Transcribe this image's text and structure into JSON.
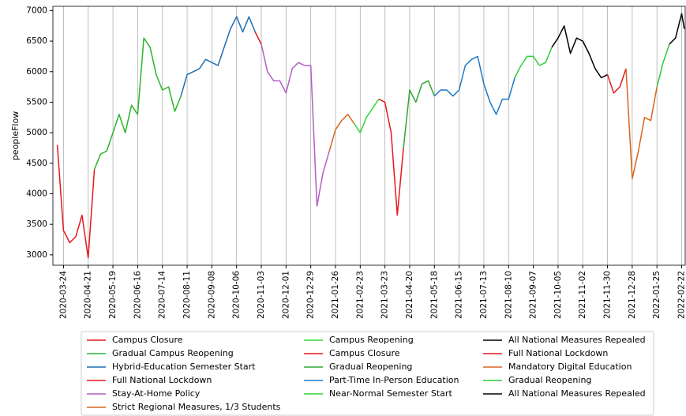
{
  "chart_data": {
    "type": "line",
    "ylabel": "peopleFlow",
    "xlim": [
      "2020-03-12",
      "2022-02-26"
    ],
    "xticks": [
      "2020-03-24",
      "2020-04-21",
      "2020-05-19",
      "2020-06-16",
      "2020-07-14",
      "2020-08-11",
      "2020-09-08",
      "2020-10-06",
      "2020-11-03",
      "2020-12-01",
      "2020-12-29",
      "2021-01-26",
      "2021-02-23",
      "2021-03-23",
      "2021-04-20",
      "2021-05-18",
      "2021-06-15",
      "2021-07-13",
      "2021-08-10",
      "2021-09-07",
      "2021-10-05",
      "2021-11-02",
      "2021-11-30",
      "2021-12-28",
      "2022-01-25",
      "2022-02-22"
    ],
    "ylim": [
      2830,
      7070
    ],
    "yticks": [
      3000,
      3500,
      4000,
      4500,
      5000,
      5500,
      6000,
      6500,
      7000
    ],
    "grid": true,
    "legend": "below",
    "series": [
      {
        "name": "Campus Closure",
        "color": "#e8161b",
        "x": [
          "2020-03-17",
          "2020-03-24",
          "2020-03-31",
          "2020-04-07",
          "2020-04-14",
          "2020-04-21",
          "2020-04-28"
        ],
        "values": [
          4800,
          3400,
          3200,
          3300,
          3650,
          2950,
          4400
        ]
      },
      {
        "name": "Gradual Campus Reopening",
        "color": "#2ab52a",
        "x": [
          "2020-04-28",
          "2020-05-05",
          "2020-05-12",
          "2020-05-19",
          "2020-05-26",
          "2020-06-02",
          "2020-06-09",
          "2020-06-16",
          "2020-06-23",
          "2020-06-30",
          "2020-07-07",
          "2020-07-14",
          "2020-07-21",
          "2020-07-28",
          "2020-08-04"
        ],
        "values": [
          4400,
          4650,
          4700,
          5000,
          5300,
          5000,
          5450,
          5300,
          6550,
          6400,
          5950,
          5700,
          5750,
          5350,
          5600
        ]
      },
      {
        "name": "Hybrid-Education Semester Start",
        "color": "#1f6eb3",
        "x": [
          "2020-08-04",
          "2020-08-11",
          "2020-08-18",
          "2020-08-25",
          "2020-09-01",
          "2020-09-08",
          "2020-09-15",
          "2020-09-22",
          "2020-09-29",
          "2020-10-06",
          "2020-10-13",
          "2020-10-20",
          "2020-10-27"
        ],
        "values": [
          5600,
          5950,
          6000,
          6050,
          6200,
          6150,
          6100,
          6400,
          6700,
          6900,
          6650,
          6900,
          6650
        ]
      },
      {
        "name": "Full National Lockdown",
        "color": "#e8161b",
        "x": [
          "2020-10-27",
          "2020-11-03"
        ],
        "values": [
          6650,
          6450
        ]
      },
      {
        "name": "Stay-At-Home Policy",
        "color": "#b35ec4",
        "x": [
          "2020-11-03",
          "2020-11-10",
          "2020-11-17",
          "2020-11-24",
          "2020-12-01",
          "2020-12-08",
          "2020-12-15",
          "2020-12-22",
          "2020-12-29",
          "2021-01-05",
          "2021-01-12",
          "2021-01-19"
        ],
        "values": [
          6450,
          6000,
          5850,
          5850,
          5650,
          6050,
          6150,
          6100,
          6100,
          3800,
          4350,
          4700
        ]
      },
      {
        "name": "Strict Regional Measures, 1/3 Students",
        "color": "#d4661f",
        "x": [
          "2021-01-19",
          "2021-01-26",
          "2021-02-02",
          "2021-02-09",
          "2021-02-16"
        ],
        "values": [
          4700,
          5050,
          5200,
          5300,
          5150
        ]
      },
      {
        "name": "Campus Reopening",
        "color": "#35d43a",
        "x": [
          "2021-02-16",
          "2021-02-23",
          "2021-03-02",
          "2021-03-09",
          "2021-03-16"
        ],
        "values": [
          5150,
          5000,
          5250,
          5400,
          5550
        ]
      },
      {
        "name": "Campus Closure",
        "color": "#e8161b",
        "x": [
          "2021-03-16",
          "2021-03-23",
          "2021-03-30",
          "2021-04-06",
          "2021-04-13"
        ],
        "values": [
          5550,
          5500,
          5000,
          3650,
          4750
        ]
      },
      {
        "name": "Gradual Reopening",
        "color": "#33a533",
        "x": [
          "2021-04-13",
          "2021-04-20",
          "2021-04-27",
          "2021-05-04",
          "2021-05-11",
          "2021-05-18"
        ],
        "values": [
          4750,
          5700,
          5500,
          5800,
          5850,
          5600
        ]
      },
      {
        "name": "Part-Time In-Person Education",
        "color": "#1f78c4",
        "x": [
          "2021-05-18",
          "2021-05-25",
          "2021-06-01",
          "2021-06-08",
          "2021-06-15",
          "2021-06-22",
          "2021-06-29",
          "2021-07-06",
          "2021-07-13",
          "2021-07-20",
          "2021-07-27",
          "2021-08-03",
          "2021-08-10",
          "2021-08-17"
        ],
        "values": [
          5600,
          5700,
          5700,
          5600,
          5700,
          6100,
          6200,
          6250,
          5800,
          5500,
          5300,
          5550,
          5550,
          5900
        ]
      },
      {
        "name": "Near-Normal Semester Start",
        "color": "#2fd03a",
        "x": [
          "2021-08-17",
          "2021-08-24",
          "2021-08-31",
          "2021-09-07",
          "2021-09-14",
          "2021-09-21",
          "2021-09-28"
        ],
        "values": [
          5900,
          6100,
          6250,
          6250,
          6100,
          6150,
          6400
        ]
      },
      {
        "name": "All National Measures Repealed",
        "color": "#000000",
        "x": [
          "2021-09-28",
          "2021-10-05",
          "2021-10-12",
          "2021-10-19",
          "2021-10-26",
          "2021-11-02",
          "2021-11-09",
          "2021-11-16",
          "2021-11-23",
          "2021-11-30"
        ],
        "values": [
          6400,
          6550,
          6750,
          6300,
          6550,
          6500,
          6300,
          6050,
          5900,
          5950
        ]
      },
      {
        "name": "Full National Lockdown",
        "color": "#e31a1c",
        "x": [
          "2021-11-30",
          "2021-12-07",
          "2021-12-14",
          "2021-12-21"
        ],
        "values": [
          5950,
          5650,
          5750,
          6050
        ]
      },
      {
        "name": "Mandatory Digital Education",
        "color": "#d8641e",
        "x": [
          "2021-12-21",
          "2021-12-28",
          "2022-01-04",
          "2022-01-11",
          "2022-01-18",
          "2022-01-25"
        ],
        "values": [
          6050,
          4250,
          4700,
          5250,
          5200,
          5750
        ]
      },
      {
        "name": "Gradual Reopening",
        "color": "#2fc839",
        "x": [
          "2022-01-25",
          "2022-02-01",
          "2022-02-08"
        ],
        "values": [
          5750,
          6150,
          6450
        ]
      },
      {
        "name": "All National Measures Repealed",
        "color": "#000000",
        "x": [
          "2022-02-08",
          "2022-02-15",
          "2022-02-22",
          "2022-02-25"
        ],
        "values": [
          6450,
          6550,
          6950,
          6700
        ]
      }
    ]
  }
}
